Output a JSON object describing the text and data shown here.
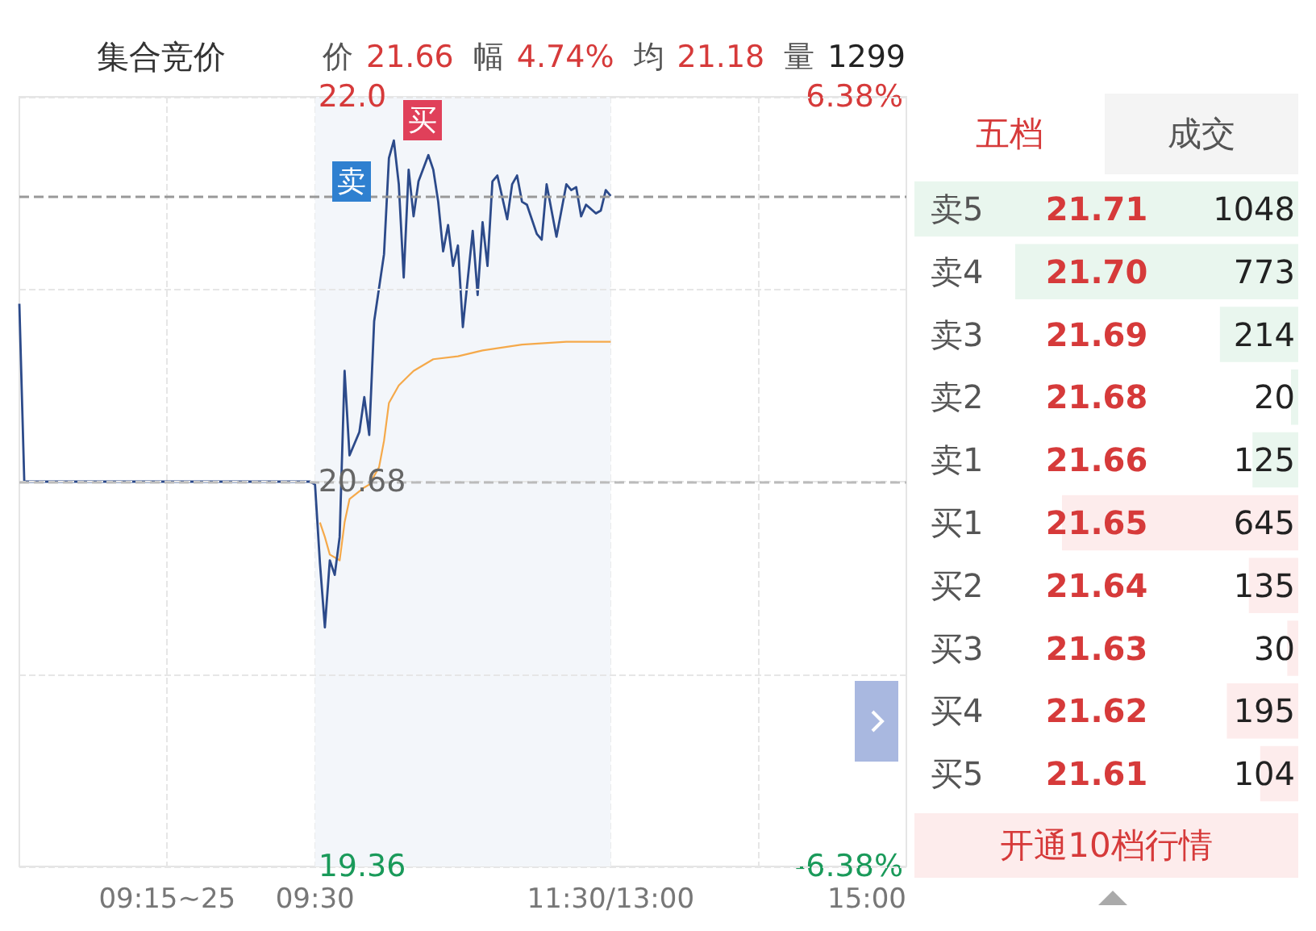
{
  "chart_data": [
    {
      "type": "line",
      "title": "集合竞价",
      "subtitle": "价 21.66 幅 4.74% 均 21.18 量 1299",
      "categories": [
        null,
        null,
        null,
        null,
        null,
        null,
        null,
        null,
        null,
        null,
        null,
        null,
        null,
        null,
        null,
        null,
        null,
        null,
        null,
        null,
        null,
        null,
        null,
        null,
        null,
        null,
        null,
        null,
        null,
        null,
        "09:15~25",
        null,
        null,
        null,
        null,
        null,
        null,
        null,
        null,
        null,
        null,
        null,
        null,
        null,
        null,
        null,
        null,
        null,
        null,
        null,
        null,
        null,
        null,
        null,
        null,
        null,
        null,
        null,
        null,
        null,
        "09:30",
        null,
        null,
        null,
        null,
        null,
        null,
        null,
        null,
        null,
        null,
        null,
        null,
        null,
        null,
        null,
        null,
        null,
        null,
        null,
        null,
        null,
        null,
        null,
        null,
        null,
        null,
        null,
        null,
        null,
        null,
        null,
        null,
        null,
        null,
        null,
        null,
        null,
        null,
        null,
        null,
        null,
        null,
        null,
        null,
        null,
        null,
        null,
        null,
        null,
        null,
        null,
        null,
        null,
        null,
        null,
        null,
        null,
        null,
        null,
        "11:30/13:00",
        null,
        null,
        null,
        null,
        null,
        null,
        null,
        null,
        null,
        null,
        null,
        null,
        null,
        null,
        null,
        null,
        null,
        null,
        null,
        null,
        null,
        null,
        null,
        null,
        null,
        null,
        null,
        null,
        null,
        null,
        null,
        null,
        null,
        null,
        null,
        null,
        null,
        null,
        null,
        null,
        null,
        null,
        null,
        null,
        null,
        null,
        null,
        null,
        null,
        null,
        null,
        null,
        null,
        null,
        null,
        null,
        null,
        null,
        null,
        "15:00"
      ],
      "ylim": [
        19.36,
        22
      ],
      "yticks": [
        {
          "value": 22,
          "label": "22.0"
        },
        {
          "value": 21.34,
          "label": null
        },
        20.68,
        {
          "value": 20.02,
          "label": null
        },
        19.36
      ],
      "y2lim": [
        -6.38,
        6.38
      ],
      "y2ticks": [
        {
          "value": 6.38,
          "label": "6.38%"
        },
        {
          "value": -6.38,
          "label": "-6.38%"
        }
      ],
      "grid": true,
      "marker": "none",
      "line_style": "solid",
      "series": [
        {
          "color": "#2c4a8a",
          "values": [
            21.29,
            20.68,
            null,
            null,
            null,
            null,
            null,
            null,
            null,
            null,
            null,
            null,
            null,
            null,
            null,
            null,
            null,
            null,
            null,
            null,
            null,
            null,
            null,
            null,
            null,
            null,
            null,
            null,
            null,
            null,
            null,
            null,
            null,
            null,
            null,
            null,
            null,
            null,
            null,
            null,
            null,
            null,
            null,
            null,
            null,
            null,
            null,
            null,
            null,
            null,
            null,
            null,
            null,
            null,
            null,
            null,
            null,
            null,
            null,
            20.68,
            20.67,
            20.4,
            20.18,
            20.41,
            20.36,
            20.49,
            21.06,
            20.77,
            null,
            20.85,
            20.97,
            20.84,
            21.23,
            null,
            21.46,
            21.79,
            21.85,
            21.7,
            21.38,
            21.75,
            21.59,
            21.71,
            null,
            21.8,
            21.75,
            21.64,
            21.47,
            21.56,
            21.42,
            21.49,
            21.21,
            null,
            21.54,
            21.32,
            21.57,
            21.42,
            21.71,
            21.73,
            null,
            21.58,
            21.7,
            21.73,
            21.64,
            21.63,
            null,
            21.53,
            21.51,
            21.7,
            null,
            21.52,
            null,
            21.7,
            21.68,
            21.69,
            21.59,
            21.63,
            null,
            21.6,
            21.61,
            21.68,
            21.66,
            null,
            null,
            null,
            null,
            null,
            null,
            null,
            null,
            null,
            null,
            null,
            null,
            null,
            null,
            null,
            null,
            null,
            null,
            null,
            null,
            null,
            null,
            null,
            null,
            null,
            null,
            null,
            null,
            null,
            null,
            null,
            null,
            null,
            null,
            null,
            null,
            null,
            null,
            null,
            null,
            null,
            null,
            null,
            null,
            null,
            null,
            null,
            null,
            null,
            null,
            null,
            null,
            null,
            null,
            null,
            null,
            null,
            null,
            null,
            null
          ]
        },
        {
          "color": "#f5a94a",
          "values": [
            null,
            null,
            null,
            null,
            null,
            null,
            null,
            null,
            null,
            null,
            null,
            null,
            null,
            null,
            null,
            null,
            null,
            null,
            null,
            null,
            null,
            null,
            null,
            null,
            null,
            null,
            null,
            null,
            null,
            null,
            null,
            null,
            null,
            null,
            null,
            null,
            null,
            null,
            null,
            null,
            null,
            null,
            null,
            null,
            null,
            null,
            null,
            null,
            null,
            null,
            null,
            null,
            null,
            null,
            null,
            null,
            null,
            null,
            null,
            null,
            null,
            20.54,
            20.49,
            20.43,
            null,
            20.41,
            20.54,
            20.62,
            null,
            null,
            20.66,
            20.67,
            null,
            20.73,
            20.82,
            20.95,
            null,
            21.01,
            null,
            null,
            21.06,
            null,
            null,
            null,
            21.1,
            null,
            null,
            null,
            null,
            21.11,
            null,
            null,
            null,
            null,
            21.13,
            null,
            null,
            null,
            null,
            null,
            null,
            null,
            21.15,
            null,
            null,
            null,
            null,
            null,
            null,
            null,
            null,
            21.16,
            null,
            null,
            null,
            null,
            null,
            null,
            null,
            null,
            21.16,
            null,
            null,
            null,
            null,
            null,
            null,
            null,
            null,
            null,
            null,
            null,
            null,
            null,
            null,
            null,
            null,
            null,
            null,
            null,
            null,
            null,
            null,
            null,
            null,
            null,
            null,
            null,
            null,
            null,
            null,
            null,
            null,
            null,
            null,
            null,
            null,
            null,
            null,
            null,
            null,
            null,
            null,
            null,
            null,
            null,
            null,
            null,
            null,
            null,
            null,
            null,
            null,
            null,
            null,
            null,
            null,
            null,
            null,
            null,
            null
          ]
        }
      ],
      "ref_lines": [
        {
          "axis": "y",
          "value": 21.66,
          "color": "#999999",
          "line_style": "dashed"
        },
        {
          "axis": "y",
          "value": 20.68,
          "color": "#bbbbbb",
          "line_style": "dashed"
        }
      ],
      "bands": [
        {
          "axis": "x",
          "from": "09:30",
          "to": "11:30/13:00",
          "color": "#f3f6fa"
        }
      ],
      "annotations": [
        "买",
        "卖"
      ]
    },
    {
      "type": "bar",
      "orientation": "horizontal",
      "categories": [
        "卖5",
        "卖4",
        "卖3",
        "卖2",
        "卖1",
        "买1",
        "买2",
        "买3",
        "买4",
        "买5"
      ],
      "values": [
        1048,
        773,
        214,
        20,
        125,
        645,
        135,
        30,
        195,
        104
      ],
      "colors": [
        "#e9f6ee",
        "#e9f6ee",
        "#e9f6ee",
        "#e9f6ee",
        "#e9f6ee",
        "#fdecec",
        "#fdecec",
        "#fdecec",
        "#fdecec",
        "#fdecec"
      ],
      "xlim": [
        1048,
        0
      ],
      "data_labels": true,
      "tick_labels": "y",
      "annotations": [
        "21.71",
        "21.70",
        "21.69",
        "21.68",
        "21.66",
        "21.65",
        "21.64",
        "21.63",
        "21.62",
        "21.61",
        "五档",
        "成交",
        "开通10档行情"
      ]
    }
  ]
}
